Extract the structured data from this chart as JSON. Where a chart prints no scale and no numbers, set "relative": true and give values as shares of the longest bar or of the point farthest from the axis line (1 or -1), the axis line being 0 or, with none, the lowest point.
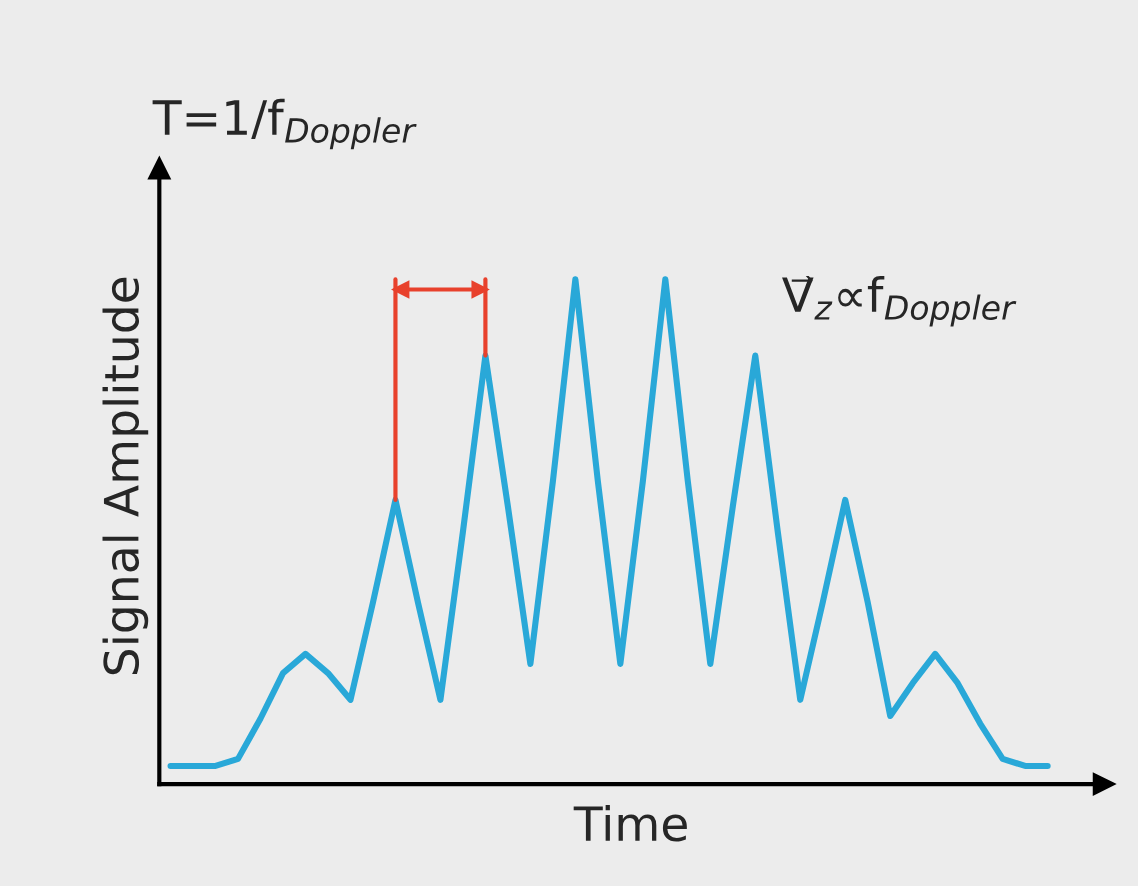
{
  "chart_data": {
    "type": "line",
    "relative": true,
    "categories": [
      null,
      null,
      null,
      null,
      null,
      null,
      null,
      null,
      null,
      null,
      null,
      null,
      null,
      null,
      null,
      null,
      null,
      null,
      null,
      null,
      null,
      null,
      null,
      null,
      null,
      null,
      null,
      null,
      null,
      null,
      null,
      null,
      null,
      null,
      null,
      null,
      null,
      null,
      null,
      null
    ],
    "series": [
      {
        "color": "#29a8d8",
        "values": [
          0.036,
          0.036,
          0.036,
          0.05,
          0.13,
          0.22,
          0.258,
          0.22,
          0.167,
          0.36,
          0.563,
          0.36,
          0.167,
          0.5,
          0.849,
          0.55,
          0.238,
          0.6,
          1.0,
          0.6,
          0.238,
          0.6,
          1.0,
          0.6,
          0.238,
          0.55,
          0.849,
          0.5,
          0.167,
          0.36,
          0.563,
          0.36,
          0.135,
          0.2,
          0.258,
          0.2,
          0.12,
          0.05,
          0.036,
          0.036
        ]
      }
    ],
    "xlabel": "Time",
    "ylabel": "Signal Amplitude",
    "annotations": [
      "T=1/f$_{Doppler}$",
      "V⃗$_{z}$∝f$_{Doppler}$"
    ],
    "grid": false,
    "legend": false
  }
}
